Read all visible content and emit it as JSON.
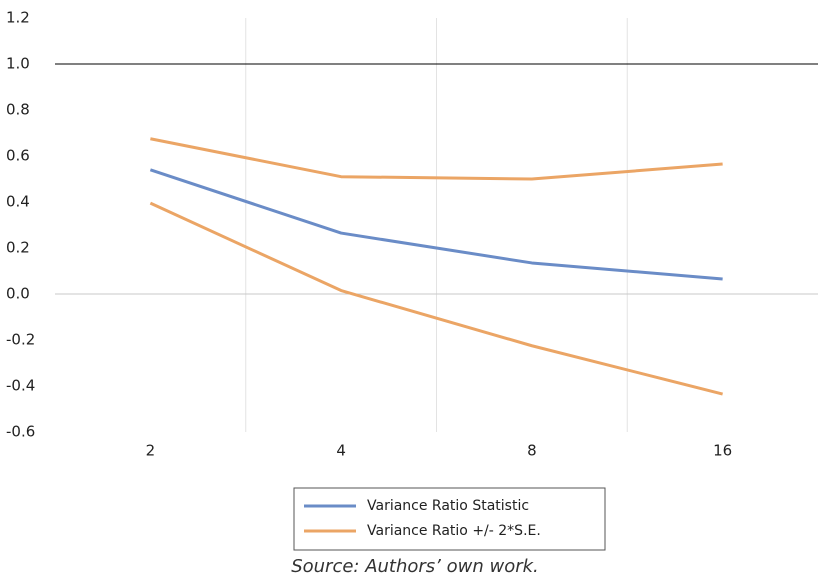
{
  "chart_data": {
    "type": "line",
    "categories": [
      "2",
      "4",
      "8",
      "16"
    ],
    "series": [
      {
        "name": "Variance Ratio Statistic",
        "color": "#6a8cc7",
        "values": [
          0.54,
          0.265,
          0.135,
          0.065
        ]
      },
      {
        "name": "Variance Ratio +/- 2*S.E.",
        "color": "#eba565",
        "values": [
          0.675,
          0.51,
          0.5,
          0.565
        ]
      },
      {
        "color": "#eba565",
        "values": [
          0.395,
          0.015,
          -0.225,
          -0.435
        ]
      }
    ],
    "ylim": [
      -0.6,
      1.2
    ],
    "yticks": [
      -0.6,
      -0.4,
      -0.2,
      {
        "value": 0,
        "label": "0.0"
      },
      0.2,
      0.4,
      0.6,
      0.8,
      {
        "value": 1,
        "label": "1.0"
      },
      1.2
    ],
    "reference_line": 1,
    "grid": "vertical",
    "legend": "bottom",
    "caption": "Source: Authors’ own work."
  }
}
